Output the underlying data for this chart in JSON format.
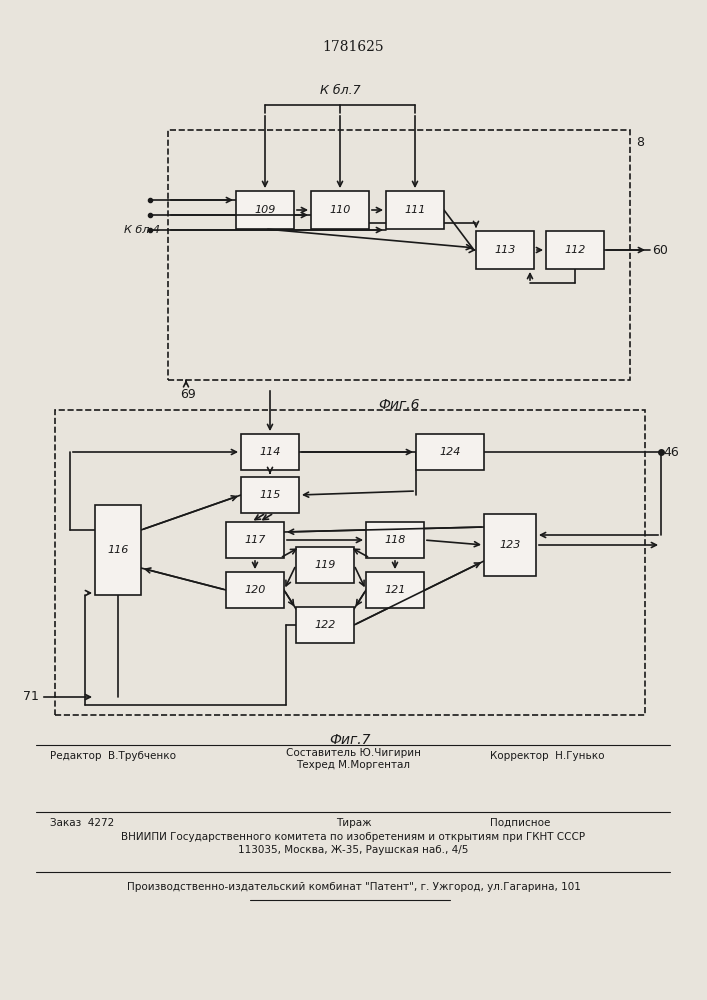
{
  "title": "1781625",
  "bg_color": "#e8e4dc",
  "line_color": "#1a1a1a",
  "box_color": "#f5f2ee",
  "fig6_caption": "Фиг.6",
  "fig7_caption": "Фиг.7",
  "kbl7": "К бл.7",
  "kbl4": "К бл.4",
  "label_8": "8",
  "label_60": "60",
  "label_69": "69",
  "label_46": "46",
  "label_71": "71",
  "footer1_left": "Редактор  В.Трубченко",
  "footer1_mid1": "Составитель Ю.Чигирин",
  "footer1_mid2": "Техред М.Моргентал",
  "footer1_right": "Корректор  Н.Гунько",
  "footer2_left": "Заказ  4272",
  "footer2_mid": "Тираж",
  "footer2_right": "Подписное",
  "footer3": "ВНИИПИ Государственного комитета по изобретениям и открытиям при ГКНТ СССР",
  "footer4": "113035, Москва, Ж-35, Раушская наб., 4/5",
  "footer5": "Производственно-издательский комбинат \"Патент\", г. Ужгород, ул.Гагарина, 101"
}
